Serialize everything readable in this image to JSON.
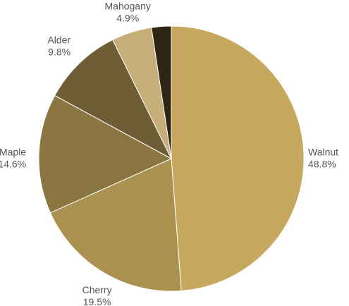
{
  "chart_data": {
    "type": "pie",
    "start_angle_deg": 0,
    "direction": "clockwise",
    "slices": [
      {
        "label": "Walnut",
        "value": 48.8,
        "display": "48.8%",
        "color": "#C6A95E",
        "side": "right"
      },
      {
        "label": "Cherry",
        "value": 19.5,
        "display": "19.5%",
        "color": "#AA9150",
        "side": "center"
      },
      {
        "label": "Maple",
        "value": 14.6,
        "display": "14.6%",
        "color": "#8B7641",
        "side": "left"
      },
      {
        "label": "Alder",
        "value": 9.8,
        "display": "9.8%",
        "color": "#6E5D35",
        "side": "left"
      },
      {
        "label": "Mahogany",
        "value": 4.9,
        "display": "4.9%",
        "color": "#C5AE78",
        "side": "center"
      },
      {
        "label": "",
        "value": 2.4,
        "display": "",
        "color": "#2E2515",
        "side": "none"
      }
    ]
  }
}
